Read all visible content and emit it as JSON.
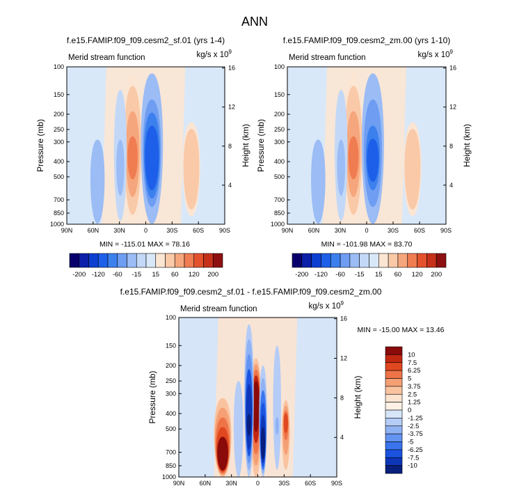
{
  "figure_title": "ANN",
  "palette": {
    "stream": [
      "#08006b",
      "#0b1fa8",
      "#0d3fd0",
      "#1d5fe8",
      "#3c80ee",
      "#6e9df2",
      "#9bbcf5",
      "#c3d8f7",
      "#d9e8f8",
      "#fbe5d3",
      "#f9c9a8",
      "#f6a67c",
      "#f07c52",
      "#e4522d",
      "#c6311b",
      "#8e1010"
    ],
    "diff": [
      "#081f7d",
      "#0d36b8",
      "#1b53e0",
      "#3a74ee",
      "#6494f2",
      "#8fb2f4",
      "#b5ccf6",
      "#d6e5f8",
      "#fce3d0",
      "#f9c3a0",
      "#f59f74",
      "#ee7448",
      "#e1481f",
      "#c22712",
      "#8b0a0a"
    ]
  },
  "chart_data": [
    {
      "id": "panel-sf01",
      "type": "heatmap",
      "title": "f.e15.FAMIP.f09_f09.cesm2_sf.01 (yrs 1-4)",
      "subtitle_left": "Merid stream function",
      "units": "kg/s x 10",
      "units_exp": "9",
      "ylabel": "Pressure (mb)",
      "y2label": "Height (km)",
      "x_ticks": [
        "90N",
        "60N",
        "30N",
        "0",
        "30S",
        "60S",
        "90S"
      ],
      "x_range": [
        90,
        -90
      ],
      "y_ticks": [
        100,
        150,
        200,
        250,
        300,
        400,
        500,
        700,
        850,
        1000
      ],
      "y_range": [
        100,
        1000
      ],
      "y_scale": "log",
      "y2_ticks": [
        16,
        12,
        8,
        4
      ],
      "stats": "MIN = -115.01  MAX = 78.16",
      "min": -115.01,
      "max": 78.16,
      "cells": [
        {
          "lat": 15,
          "center_p": 400,
          "p_top": 110,
          "p_bot": 990,
          "width": 12,
          "value": 70,
          "top_value": 15
        },
        {
          "lat": 29,
          "center_p": 500,
          "p_top": 140,
          "p_bot": 950,
          "width": 8,
          "value": -20,
          "top_value": -8
        },
        {
          "lat": -7,
          "center_p": 420,
          "p_top": 110,
          "p_bot": 995,
          "width": 14,
          "value": -110,
          "top_value": -20
        },
        {
          "lat": -52,
          "center_p": 450,
          "p_top": 225,
          "p_bot": 890,
          "width": 11,
          "value": 26,
          "top_value": 15
        },
        {
          "lat": 55,
          "center_p": 430,
          "p_top": 290,
          "p_bot": 990,
          "width": 9,
          "value": -30,
          "top_value": -20
        }
      ]
    },
    {
      "id": "panel-zm00",
      "type": "heatmap",
      "title": "f.e15.FAMIP.f09_f09.cesm2_zm.00 (yrs 1-10)",
      "subtitle_left": "Merid stream function",
      "units": "kg/s x 10",
      "units_exp": "9",
      "ylabel": "Pressure (mb)",
      "y2label": "Height (km)",
      "x_ticks": [
        "90N",
        "60N",
        "30N",
        "0",
        "30S",
        "60S",
        "90S"
      ],
      "x_range": [
        90,
        -90
      ],
      "y_ticks": [
        100,
        150,
        200,
        250,
        300,
        400,
        500,
        700,
        850,
        1000
      ],
      "y_range": [
        100,
        1000
      ],
      "y_scale": "log",
      "y2_ticks": [
        16,
        12,
        8,
        4
      ],
      "stats": "MIN = -101.98  MAX = 83.70",
      "min": -101.98,
      "max": 83.7,
      "cells": [
        {
          "lat": 15,
          "center_p": 400,
          "p_top": 110,
          "p_bot": 990,
          "width": 12,
          "value": 75,
          "top_value": 15
        },
        {
          "lat": 29,
          "center_p": 500,
          "p_top": 140,
          "p_bot": 950,
          "width": 8,
          "value": -20,
          "top_value": -8
        },
        {
          "lat": -7,
          "center_p": 420,
          "p_top": 110,
          "p_bot": 995,
          "width": 14,
          "value": -98,
          "top_value": -20
        },
        {
          "lat": -52,
          "center_p": 450,
          "p_top": 225,
          "p_bot": 890,
          "width": 11,
          "value": 26,
          "top_value": 15
        },
        {
          "lat": 55,
          "center_p": 430,
          "p_top": 290,
          "p_bot": 990,
          "width": 9,
          "value": -30,
          "top_value": -20
        }
      ]
    },
    {
      "id": "panel-diff",
      "type": "heatmap",
      "title": "f.e15.FAMIP.f09_f09.cesm2_sf.01 - f.e15.FAMIP.f09_f09.cesm2_zm.00",
      "subtitle_left": "Merid stream function",
      "units": "kg/s x 10",
      "units_exp": "9",
      "ylabel": "Pressure (mb)",
      "y2label": "Height (km)",
      "x_ticks": [
        "90N",
        "60N",
        "30N",
        "0",
        "30S",
        "60S",
        "90S"
      ],
      "x_range": [
        90,
        -90
      ],
      "y_ticks": [
        100,
        150,
        200,
        250,
        300,
        400,
        500,
        700,
        850,
        1000
      ],
      "y_range": [
        100,
        1000
      ],
      "y_scale": "log",
      "y2_ticks": [
        16,
        12,
        8,
        4
      ],
      "stats": "MIN = -15.00  MAX =  13.46",
      "min": -15.0,
      "max": 13.46,
      "cells": [
        {
          "lat": 2,
          "center_p": 320,
          "p_top": 180,
          "p_bot": 1000,
          "width": 7,
          "value": 12,
          "top_value": 1.5
        },
        {
          "lat": 10,
          "center_p": 500,
          "p_top": 110,
          "p_bot": 1000,
          "width": 6,
          "value": -11,
          "top_value": -1.5
        },
        {
          "lat": -6,
          "center_p": 700,
          "p_top": 200,
          "p_bot": 1000,
          "width": 5,
          "value": -13,
          "top_value": -1.5
        },
        {
          "lat": 40,
          "center_p": 850,
          "p_top": 320,
          "p_bot": 1000,
          "width": 11,
          "value": 11,
          "top_value": 1.3
        },
        {
          "lat": -32,
          "center_p": 430,
          "p_top": 330,
          "p_bot": 900,
          "width": 5,
          "value": 6,
          "top_value": 1.3
        },
        {
          "lat": -22,
          "center_p": 500,
          "p_top": 150,
          "p_bot": 900,
          "width": 5,
          "value": -2.5,
          "top_value": -1.3
        },
        {
          "lat": 22,
          "center_p": 450,
          "p_top": 250,
          "p_bot": 1000,
          "width": 6,
          "value": -2,
          "top_value": -1.3
        }
      ]
    }
  ],
  "colorbar_stream": {
    "labels": [
      "-200",
      "-120",
      "-60",
      "-15",
      "15",
      "60",
      "120",
      "200"
    ],
    "levels": [
      -200,
      -160,
      -120,
      -80,
      -60,
      -40,
      -15,
      -5,
      5,
      15,
      40,
      60,
      80,
      120,
      160,
      200
    ]
  },
  "colorbar_diff": {
    "labels": [
      "10",
      "7.5",
      "6.25",
      "5",
      "3.75",
      "2.5",
      "1.25",
      "0",
      "-1.25",
      "-2.5",
      "-3.75",
      "-5",
      "-6.25",
      "-7.5",
      "-10"
    ],
    "levels": [
      -10,
      -7.5,
      -6.25,
      -5,
      -3.75,
      -2.5,
      -1.25,
      0,
      1.25,
      2.5,
      3.75,
      5,
      6.25,
      7.5,
      10
    ]
  }
}
